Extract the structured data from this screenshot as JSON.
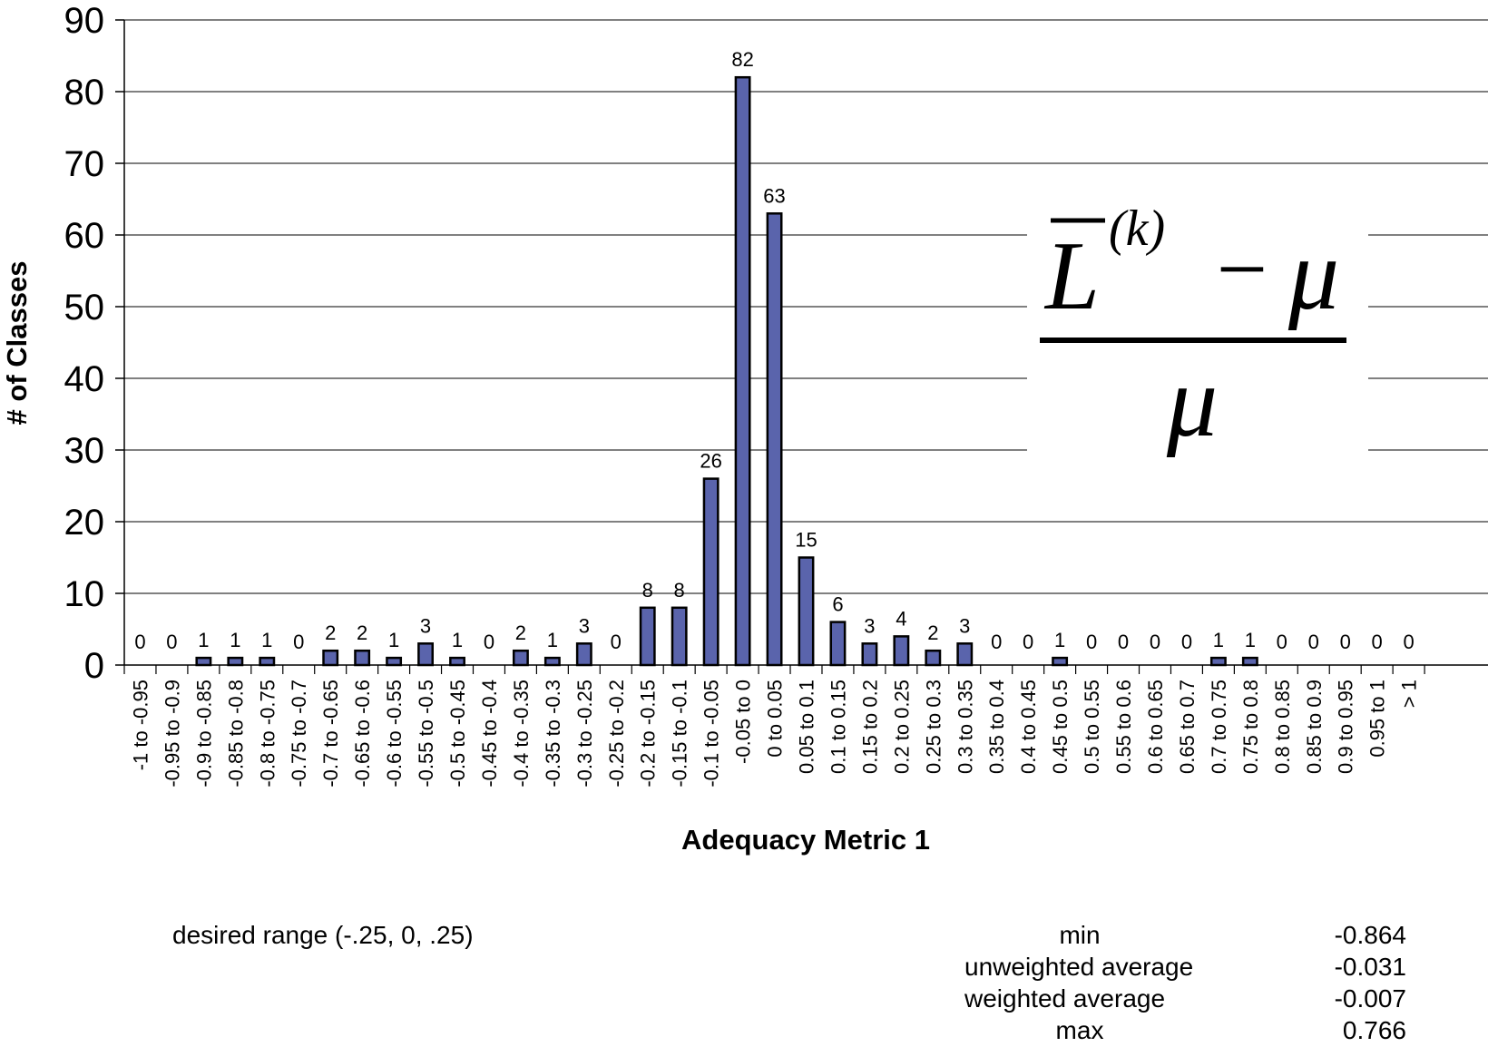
{
  "chart_data": {
    "type": "bar",
    "categories": [
      "-1 to -0.95",
      "-0.95 to -0.9",
      "-0.9 to -0.85",
      "-0.85 to -0.8",
      "-0.8 to -0.75",
      "-0.75 to -0.7",
      "-0.7 to -0.65",
      "-0.65 to -0.6",
      "-0.6 to -0.55",
      "-0.55 to -0.5",
      "-0.5 to -0.45",
      "-0.45 to -0.4",
      "-0.4 to -0.35",
      "-0.35 to -0.3",
      "-0.3 to -0.25",
      "-0.25 to -0.2",
      "-0.2 to -0.15",
      "-0.15 to -0.1",
      "-0.1 to -0.05",
      "-0.05 to 0",
      "0 to 0.05",
      "0.05 to 0.1",
      "0.1 to 0.15",
      "0.15 to 0.2",
      "0.2 to 0.25",
      "0.25 to 0.3",
      "0.3 to 0.35",
      "0.35 to 0.4",
      "0.4 to 0.45",
      "0.45 to 0.5",
      "0.5 to 0.55",
      "0.55 to 0.6",
      "0.6 to 0.65",
      "0.65 to 0.7",
      "0.7 to 0.75",
      "0.75 to 0.8",
      "0.8 to 0.85",
      "0.85 to 0.9",
      "0.9 to 0.95",
      "0.95 to 1",
      "> 1"
    ],
    "values": [
      0,
      0,
      1,
      1,
      1,
      0,
      2,
      2,
      1,
      3,
      1,
      0,
      2,
      1,
      3,
      0,
      8,
      8,
      26,
      82,
      63,
      15,
      6,
      3,
      4,
      2,
      3,
      0,
      0,
      1,
      0,
      0,
      0,
      0,
      1,
      1,
      0,
      0,
      0,
      0,
      0
    ],
    "title": "",
    "xlabel": "Adequacy Metric 1",
    "ylabel": "# of Classes",
    "ylim": [
      0,
      90
    ],
    "yticks": [
      0,
      10,
      20,
      30,
      40,
      50,
      60,
      70,
      80,
      90
    ],
    "grid": true,
    "legend": "none",
    "bar_color": "#5a64ac",
    "bar_edge_color": "#000000",
    "data_labels": true
  },
  "formula": {
    "base": "L",
    "superscript": "(k)",
    "minus": "−",
    "mu_numerator": "μ",
    "mu_denominator": "μ"
  },
  "notes": {
    "desired_range": "desired range (-.25, 0, .25)"
  },
  "stats": [
    {
      "label": "min",
      "value": "-0.864"
    },
    {
      "label": "unweighted average",
      "value": "-0.031"
    },
    {
      "label": "weighted average",
      "value": "-0.007"
    },
    {
      "label": "max",
      "value": "0.766"
    }
  ]
}
